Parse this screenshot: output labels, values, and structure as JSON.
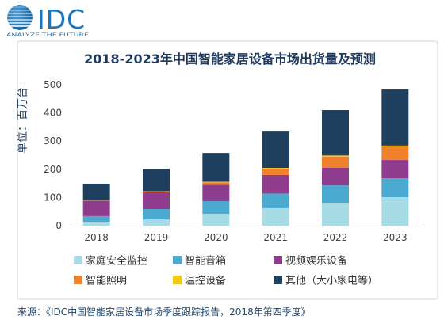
{
  "header": {
    "logo_icon": "globe-icon",
    "logo_text": "IDC",
    "tagline": "ANALYZE THE FUTURE"
  },
  "chart_data": {
    "type": "bar",
    "stacked": true,
    "title": "2018-2023年中国智能家居设备市场出货量及预测",
    "ylabel": "单位：百万台",
    "categories": [
      "2018",
      "2019",
      "2020",
      "2021",
      "2022",
      "2023"
    ],
    "yticks": [
      0,
      100,
      200,
      300,
      400,
      500
    ],
    "ylim": [
      0,
      500
    ],
    "grid": false,
    "legend_position": "bottom",
    "series": [
      {
        "name": "家庭安全监控",
        "color": "#a7dbe6",
        "values": [
          14,
          22,
          42,
          62,
          81,
          101
        ]
      },
      {
        "name": "智能音箱",
        "color": "#4ca9cf",
        "values": [
          20,
          37,
          45,
          52,
          62,
          67
        ]
      },
      {
        "name": "视频娱乐设备",
        "color": "#8f3b8e",
        "values": [
          55,
          59,
          58,
          66,
          62,
          65
        ]
      },
      {
        "name": "智能照明",
        "color": "#f0822d",
        "values": [
          1,
          3,
          9,
          22,
          40,
          48
        ]
      },
      {
        "name": "温控设备",
        "color": "#f6c51a",
        "values": [
          1,
          1,
          2,
          3,
          4,
          3
        ]
      },
      {
        "name": "其他（大小家电等）",
        "color": "#1f3f5f",
        "values": [
          58,
          80,
          102,
          129,
          161,
          199
        ]
      }
    ]
  },
  "source": "来源：《IDC中国智能家居设备市场季度跟踪报告，2018年第四季度》"
}
